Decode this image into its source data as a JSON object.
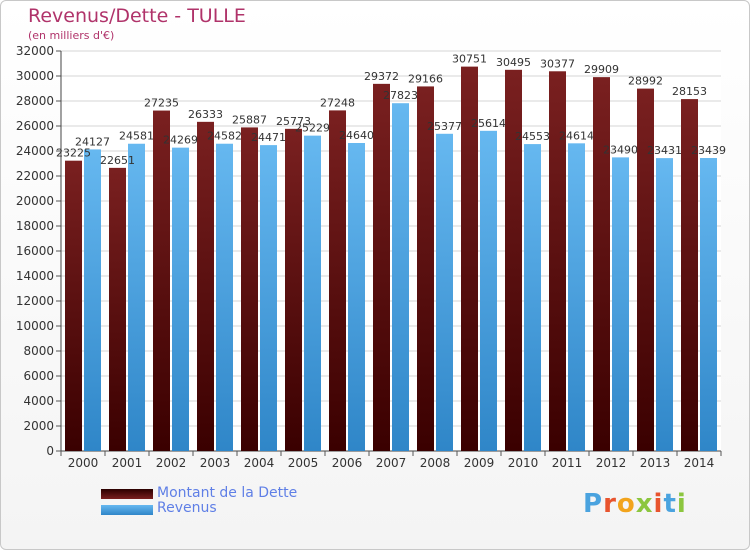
{
  "colors": {
    "title": "#b0336a",
    "debt_top": "#7a2020",
    "debt_bottom": "#3a0000",
    "rev_top": "#66b8f0",
    "rev_bottom": "#2f86c8",
    "legend_text": "#5f7fe6"
  },
  "chart_data": {
    "type": "bar",
    "title": "Revenus/Dette - TULLE",
    "subtitle": "(en milliers d'€)",
    "xlabel": "",
    "ylabel": "",
    "ylim": [
      0,
      32000
    ],
    "yticks": [
      0,
      2000,
      4000,
      6000,
      8000,
      10000,
      12000,
      14000,
      16000,
      18000,
      20000,
      22000,
      24000,
      26000,
      28000,
      30000,
      32000
    ],
    "grid": true,
    "categories": [
      "2000",
      "2001",
      "2002",
      "2003",
      "2004",
      "2005",
      "2006",
      "2007",
      "2008",
      "2009",
      "2010",
      "2011",
      "2012",
      "2013",
      "2014"
    ],
    "series": [
      {
        "name": "Montant de la Dette",
        "values": [
          23225,
          22651,
          27235,
          26333,
          25887,
          25773,
          27248,
          29372,
          29166,
          30751,
          30495,
          30377,
          29909,
          28992,
          28153
        ]
      },
      {
        "name": "Revenus",
        "values": [
          24127,
          24581,
          24269,
          24582,
          24471,
          25229,
          24640,
          27823,
          25377,
          25614,
          24553,
          24614,
          23490,
          23431,
          23439
        ]
      }
    ],
    "data_labels": [
      [
        "23225",
        "22651",
        "27235",
        "26333",
        "25887",
        "25773",
        "27248",
        "29372",
        "29166",
        "30751",
        "30495",
        "30377",
        "29909",
        "28992",
        "28153"
      ],
      [
        "24127",
        "24581",
        "24269",
        "24582",
        "24471",
        "25229",
        "24640",
        "27823",
        "25377",
        "25614",
        "24553",
        "24614",
        "23490",
        "23431",
        "23439"
      ]
    ]
  },
  "legend": {
    "debt_label": "Montant de la Dette",
    "revenue_label": "Revenus"
  },
  "logo": {
    "letters": [
      "P",
      "r",
      "o",
      "x",
      "i",
      "t",
      "i"
    ],
    "colors": [
      "#4aa3df",
      "#e8542e",
      "#f2a41c",
      "#8cc63f",
      "#e8542e",
      "#4aa3df",
      "#8cc63f"
    ]
  }
}
